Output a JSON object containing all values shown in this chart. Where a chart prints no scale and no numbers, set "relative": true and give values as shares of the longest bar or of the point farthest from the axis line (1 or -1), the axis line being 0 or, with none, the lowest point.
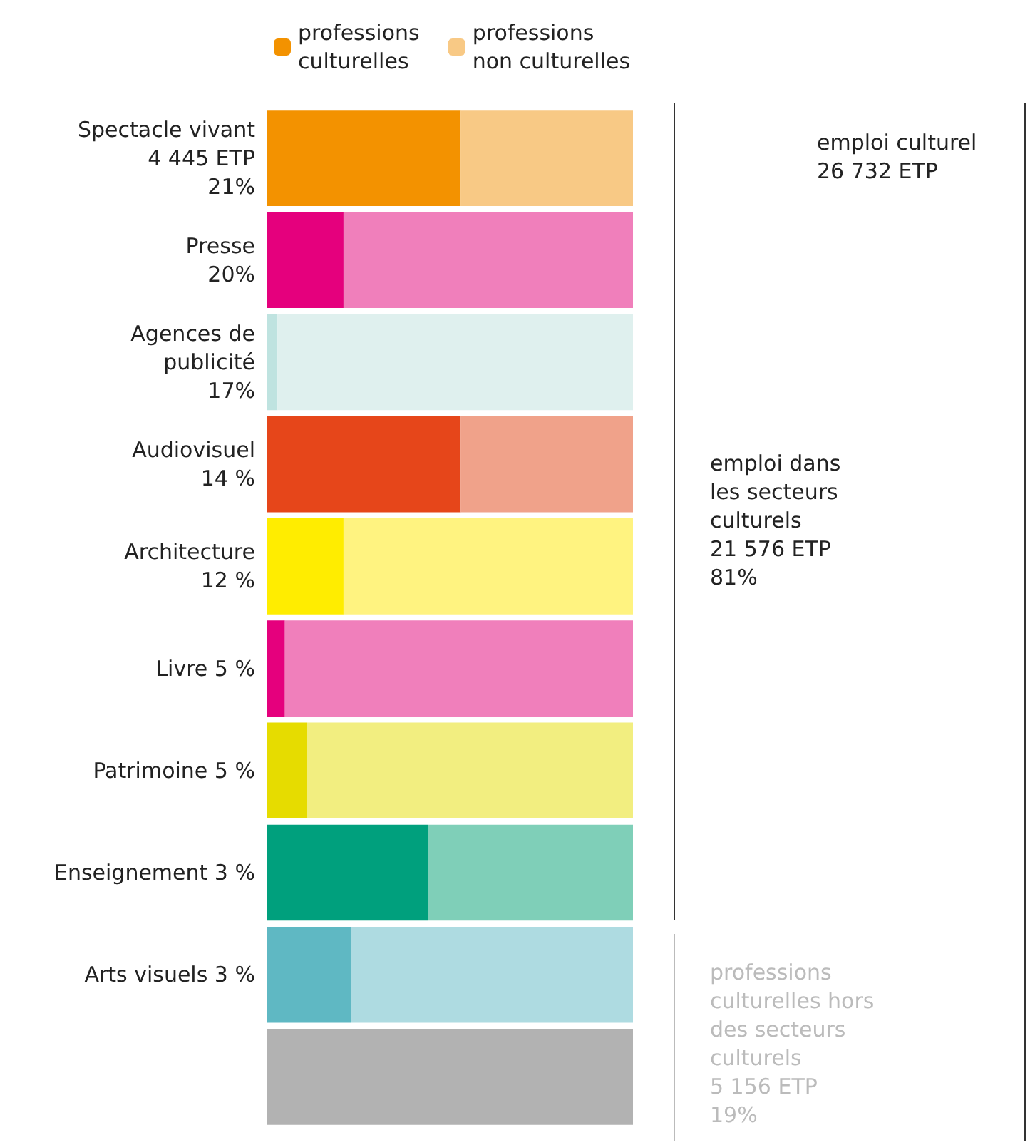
{
  "chart_data": {
    "type": "bar",
    "orientation": "horizontal",
    "stacked": true,
    "relative": true,
    "legend": "top",
    "categories": [
      "Spectacle vivant\n4 445 ETP\n21%",
      "Presse\n20%",
      "Agences de\npublicité\n17%",
      "Audiovisuel\n14 %",
      "Architecture\n12 %",
      "Livre 5 %",
      "Patrimoine 5 %",
      "Enseignement 3 %",
      "Arts visuels 3 %",
      null
    ],
    "series": [
      {
        "name": "professions\nculturelles",
        "colors": [
          "#f39200",
          "#e5007d",
          "#bfe3e0",
          "#e6461a",
          "#ffed00",
          "#e5007d",
          "#e6dc00",
          "#00a07d",
          "#5fb8c3",
          "#b2b2b2"
        ],
        "values": [
          0.53,
          0.21,
          0.03,
          0.53,
          0.21,
          0.05,
          0.11,
          0.44,
          0.23,
          1
        ]
      },
      {
        "name": "professions\nnon culturelles",
        "colors": [
          "#f8c985",
          "#f07fbb",
          "#dff0ee",
          "#f0a28a",
          "#fff380",
          "#f07fbb",
          "#f2ee80",
          "#7fcfb8",
          "#aedbe1",
          "#dddddd"
        ],
        "values": [
          0.47,
          0.79,
          0.97,
          0.47,
          0.79,
          0.95,
          0.89,
          0.56,
          0.77,
          0
        ]
      }
    ],
    "annotations": [
      "emploi culturel\n26 732 ETP",
      "emploi dans\nles secteurs\nculturels\n21 576 ETP\n81%",
      "professions\nculturelles hors\ndes secteurs\nculturels\n5 156 ETP\n19%"
    ]
  }
}
